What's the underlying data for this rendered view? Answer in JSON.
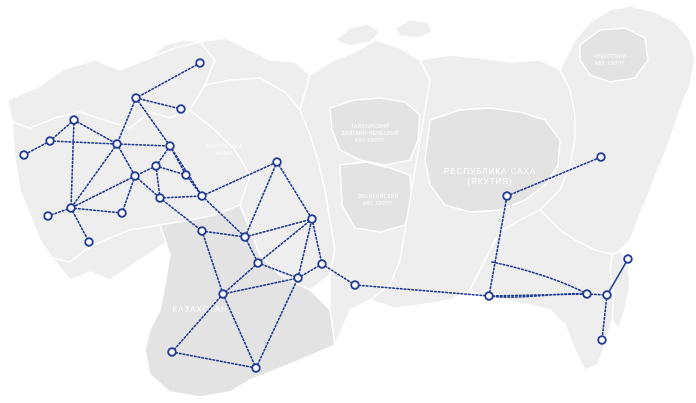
{
  "map": {
    "region_labels": [
      "ЧУКОТСКИЙ",
      "АВТ. ОКРУГ",
      "ТАЙМЫРСКИЙ",
      "ДОЛГАНО-НЕНЕЦКИЙ",
      "АВТ. ОКРУГ",
      "ЭВЕНКИЙСКИЙ",
      "АВТ. ОКРУГ",
      "РЕСПУБЛИКА САХА",
      "(ЯКУТИЯ)",
      "РЕСПУБЛИКА",
      "КОМИ",
      "КАЗАХСТАН"
    ],
    "colors": {
      "land": "#eeeeee",
      "land_dark": "#e3e3e3",
      "border": "#ffffff",
      "network": "#1f3a93",
      "node_fill": "#ffffff"
    },
    "network_style": "dotted links with hollow circular nodes"
  }
}
